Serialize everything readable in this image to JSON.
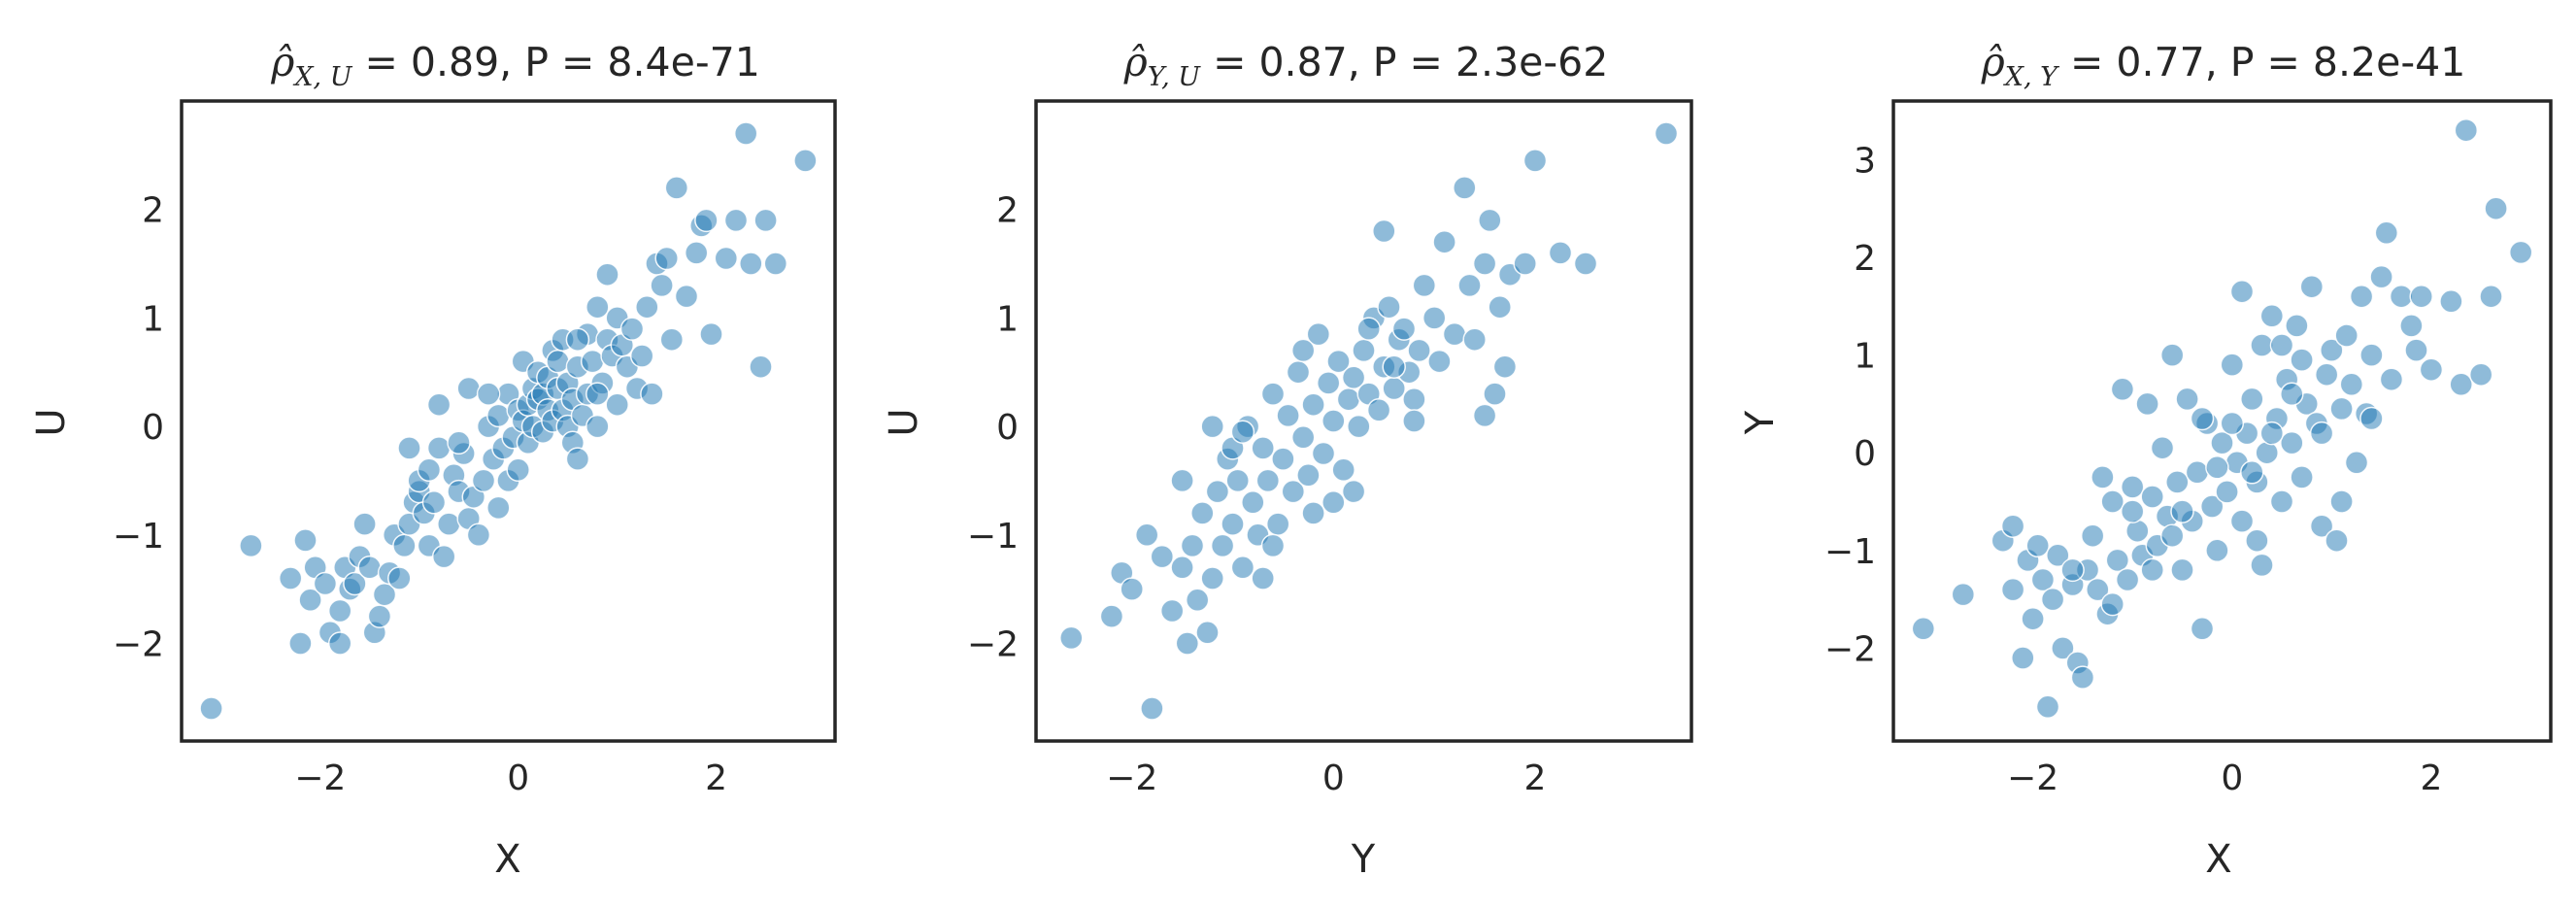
{
  "chart_data": [
    {
      "type": "scatter",
      "title": {
        "symbol": "ρ̂",
        "subscript": "X, U",
        "text": " = 0.89, P = 8.4e-71"
      },
      "xlabel": "X",
      "ylabel": "U",
      "xlim": [
        -3.4,
        3.2
      ],
      "ylim": [
        -2.9,
        3.0
      ],
      "xticks": [
        -2,
        0,
        2
      ],
      "yticks": [
        -2,
        -1,
        0,
        1,
        2
      ],
      "color": "#1f77b4",
      "grid": false,
      "points": [
        [
          -3.1,
          -2.6
        ],
        [
          -2.7,
          -1.1
        ],
        [
          -2.3,
          -1.4
        ],
        [
          -2.2,
          -2.0
        ],
        [
          -2.1,
          -1.6
        ],
        [
          -2.15,
          -1.05
        ],
        [
          -2.05,
          -1.3
        ],
        [
          -1.95,
          -1.45
        ],
        [
          -1.9,
          -1.9
        ],
        [
          -1.8,
          -2.0
        ],
        [
          -1.8,
          -1.7
        ],
        [
          -1.75,
          -1.3
        ],
        [
          -1.7,
          -1.5
        ],
        [
          -1.65,
          -1.45
        ],
        [
          -1.6,
          -1.2
        ],
        [
          -1.55,
          -0.9
        ],
        [
          -1.5,
          -1.3
        ],
        [
          -1.45,
          -1.9
        ],
        [
          -1.4,
          -1.75
        ],
        [
          -1.35,
          -1.55
        ],
        [
          -1.3,
          -1.35
        ],
        [
          -1.25,
          -1.0
        ],
        [
          -1.2,
          -1.4
        ],
        [
          -1.15,
          -1.1
        ],
        [
          -1.1,
          -0.9
        ],
        [
          -1.05,
          -0.7
        ],
        [
          -1.0,
          -0.6
        ],
        [
          -0.95,
          -0.8
        ],
        [
          -0.9,
          -1.1
        ],
        [
          -1.1,
          -0.2
        ],
        [
          -1.0,
          -0.5
        ],
        [
          -0.9,
          -0.4
        ],
        [
          -0.85,
          -0.7
        ],
        [
          -0.8,
          -0.2
        ],
        [
          -0.75,
          -1.2
        ],
        [
          -0.7,
          -0.9
        ],
        [
          -0.65,
          -0.45
        ],
        [
          -0.6,
          -0.6
        ],
        [
          -0.55,
          -0.25
        ],
        [
          -0.5,
          -0.85
        ],
        [
          -0.45,
          -0.65
        ],
        [
          -0.4,
          -1.0
        ],
        [
          -0.35,
          -0.5
        ],
        [
          -0.3,
          0.0
        ],
        [
          -0.25,
          -0.3
        ],
        [
          -0.2,
          -0.75
        ],
        [
          -0.2,
          0.1
        ],
        [
          -0.15,
          -0.2
        ],
        [
          -0.1,
          0.3
        ],
        [
          -0.1,
          -0.5
        ],
        [
          -0.05,
          -0.1
        ],
        [
          0.0,
          0.15
        ],
        [
          0.0,
          -0.4
        ],
        [
          0.05,
          0.05
        ],
        [
          0.05,
          0.6
        ],
        [
          0.1,
          0.2
        ],
        [
          0.1,
          -0.15
        ],
        [
          0.15,
          0.35
        ],
        [
          0.15,
          0.0
        ],
        [
          0.2,
          0.25
        ],
        [
          0.2,
          0.5
        ],
        [
          0.25,
          -0.05
        ],
        [
          0.25,
          0.3
        ],
        [
          0.3,
          0.45
        ],
        [
          0.3,
          0.15
        ],
        [
          0.35,
          0.7
        ],
        [
          0.35,
          0.05
        ],
        [
          0.4,
          0.35
        ],
        [
          0.4,
          0.6
        ],
        [
          0.45,
          0.15
        ],
        [
          0.45,
          0.8
        ],
        [
          0.5,
          0.0
        ],
        [
          0.5,
          0.4
        ],
        [
          0.55,
          -0.15
        ],
        [
          0.55,
          0.25
        ],
        [
          0.6,
          0.55
        ],
        [
          0.6,
          -0.3
        ],
        [
          0.65,
          0.1
        ],
        [
          0.7,
          0.85
        ],
        [
          0.7,
          0.3
        ],
        [
          0.75,
          0.6
        ],
        [
          0.8,
          1.1
        ],
        [
          0.8,
          0.0
        ],
        [
          0.85,
          0.4
        ],
        [
          0.9,
          0.8
        ],
        [
          0.9,
          1.4
        ],
        [
          0.95,
          0.65
        ],
        [
          1.0,
          0.2
        ],
        [
          1.0,
          1.0
        ],
        [
          1.05,
          0.75
        ],
        [
          1.1,
          0.55
        ],
        [
          1.15,
          0.9
        ],
        [
          1.2,
          0.35
        ],
        [
          1.25,
          0.65
        ],
        [
          1.3,
          1.1
        ],
        [
          1.35,
          0.3
        ],
        [
          1.4,
          1.5
        ],
        [
          1.45,
          1.3
        ],
        [
          1.5,
          1.55
        ],
        [
          1.55,
          0.8
        ],
        [
          1.6,
          2.2
        ],
        [
          1.7,
          1.2
        ],
        [
          1.8,
          1.6
        ],
        [
          1.85,
          1.85
        ],
        [
          1.9,
          1.9
        ],
        [
          1.95,
          0.85
        ],
        [
          2.1,
          1.55
        ],
        [
          2.2,
          1.9
        ],
        [
          2.3,
          2.7
        ],
        [
          2.35,
          1.5
        ],
        [
          2.45,
          0.55
        ],
        [
          2.5,
          1.9
        ],
        [
          2.6,
          1.5
        ],
        [
          2.9,
          2.45
        ],
        [
          -0.5,
          0.35
        ],
        [
          -0.8,
          0.2
        ],
        [
          0.6,
          0.8
        ],
        [
          0.8,
          0.3
        ],
        [
          -0.3,
          0.3
        ],
        [
          -0.6,
          -0.15
        ]
      ]
    },
    {
      "type": "scatter",
      "title": {
        "symbol": "ρ̂",
        "subscript": "Y, U",
        "text": " = 0.87, P = 2.3e-62"
      },
      "xlabel": "Y",
      "ylabel": "U",
      "xlim": [
        -2.95,
        3.55
      ],
      "ylim": [
        -2.9,
        3.0
      ],
      "xticks": [
        -2,
        0,
        2
      ],
      "yticks": [
        -2,
        -1,
        0,
        1,
        2
      ],
      "color": "#1f77b4",
      "grid": false,
      "points": [
        [
          -2.6,
          -1.95
        ],
        [
          -2.2,
          -1.75
        ],
        [
          -2.1,
          -1.35
        ],
        [
          -2.0,
          -1.5
        ],
        [
          -1.85,
          -1.0
        ],
        [
          -1.8,
          -2.6
        ],
        [
          -1.7,
          -1.2
        ],
        [
          -1.6,
          -1.7
        ],
        [
          -1.5,
          -1.3
        ],
        [
          -1.45,
          -2.0
        ],
        [
          -1.4,
          -1.1
        ],
        [
          -1.35,
          -1.6
        ],
        [
          -1.3,
          -0.8
        ],
        [
          -1.25,
          -1.9
        ],
        [
          -1.2,
          -1.4
        ],
        [
          -1.15,
          -0.6
        ],
        [
          -1.1,
          -1.1
        ],
        [
          -1.05,
          -0.3
        ],
        [
          -1.0,
          -0.9
        ],
        [
          -0.95,
          -0.5
        ],
        [
          -0.9,
          -1.3
        ],
        [
          -0.85,
          0.0
        ],
        [
          -0.8,
          -0.7
        ],
        [
          -0.75,
          -1.0
        ],
        [
          -0.7,
          -0.2
        ],
        [
          -0.65,
          -0.5
        ],
        [
          -0.6,
          0.3
        ],
        [
          -0.55,
          -0.9
        ],
        [
          -0.5,
          -0.3
        ],
        [
          -0.45,
          0.1
        ],
        [
          -0.4,
          -0.6
        ],
        [
          -0.35,
          0.5
        ],
        [
          -0.3,
          -0.1
        ],
        [
          -0.25,
          -0.45
        ],
        [
          -0.2,
          0.2
        ],
        [
          -0.15,
          0.85
        ],
        [
          -0.1,
          -0.25
        ],
        [
          -0.05,
          0.4
        ],
        [
          0.0,
          0.05
        ],
        [
          0.05,
          0.6
        ],
        [
          0.1,
          -0.4
        ],
        [
          0.15,
          0.25
        ],
        [
          0.2,
          0.45
        ],
        [
          0.25,
          0.0
        ],
        [
          0.3,
          0.7
        ],
        [
          0.35,
          0.3
        ],
        [
          0.4,
          1.0
        ],
        [
          0.45,
          0.15
        ],
        [
          0.5,
          0.55
        ],
        [
          0.55,
          1.1
        ],
        [
          0.6,
          0.35
        ],
        [
          0.65,
          0.8
        ],
        [
          0.7,
          0.9
        ],
        [
          0.75,
          0.5
        ],
        [
          0.8,
          0.25
        ],
        [
          0.85,
          0.7
        ],
        [
          0.9,
          1.3
        ],
        [
          1.0,
          1.0
        ],
        [
          1.05,
          0.6
        ],
        [
          1.1,
          1.7
        ],
        [
          1.2,
          0.85
        ],
        [
          1.3,
          2.2
        ],
        [
          1.35,
          1.3
        ],
        [
          1.4,
          0.8
        ],
        [
          1.5,
          1.5
        ],
        [
          1.55,
          1.9
        ],
        [
          1.6,
          0.3
        ],
        [
          1.65,
          1.1
        ],
        [
          1.7,
          0.55
        ],
        [
          1.75,
          1.4
        ],
        [
          1.9,
          1.5
        ],
        [
          2.0,
          2.45
        ],
        [
          2.25,
          1.6
        ],
        [
          2.5,
          1.5
        ],
        [
          3.3,
          2.7
        ],
        [
          -1.2,
          0.0
        ],
        [
          -0.7,
          -1.4
        ],
        [
          0.0,
          -0.7
        ],
        [
          0.5,
          1.8
        ],
        [
          -0.3,
          0.7
        ],
        [
          -1.5,
          -0.5
        ],
        [
          -1.0,
          -0.2
        ],
        [
          0.2,
          -0.6
        ],
        [
          0.8,
          0.05
        ],
        [
          1.5,
          0.1
        ],
        [
          -0.6,
          -1.1
        ],
        [
          0.35,
          0.9
        ],
        [
          -0.2,
          -0.8
        ],
        [
          0.6,
          0.55
        ],
        [
          -0.9,
          -0.05
        ]
      ]
    },
    {
      "type": "scatter",
      "title": {
        "symbol": "ρ̂",
        "subscript": "X, Y",
        "text": " = 0.77, P = 8.2e-41"
      },
      "xlabel": "X",
      "ylabel": "Y",
      "xlim": [
        -3.4,
        3.2
      ],
      "ylim": [
        -2.95,
        3.6
      ],
      "xticks": [
        -2,
        0,
        2
      ],
      "yticks": [
        -2,
        -1,
        0,
        1,
        2,
        3
      ],
      "color": "#1f77b4",
      "grid": false,
      "points": [
        [
          -3.1,
          -1.8
        ],
        [
          -2.7,
          -1.45
        ],
        [
          -2.3,
          -0.9
        ],
        [
          -2.2,
          -1.4
        ],
        [
          -2.2,
          -0.75
        ],
        [
          -2.1,
          -2.1
        ],
        [
          -2.05,
          -1.1
        ],
        [
          -2.0,
          -1.7
        ],
        [
          -1.95,
          -0.95
        ],
        [
          -1.9,
          -1.3
        ],
        [
          -1.85,
          -2.6
        ],
        [
          -1.8,
          -1.5
        ],
        [
          -1.75,
          -1.05
        ],
        [
          -1.7,
          -2.0
        ],
        [
          -1.6,
          -1.35
        ],
        [
          -1.55,
          -2.15
        ],
        [
          -1.5,
          -2.3
        ],
        [
          -1.45,
          -1.2
        ],
        [
          -1.4,
          -0.85
        ],
        [
          -1.35,
          -1.4
        ],
        [
          -1.3,
          -0.25
        ],
        [
          -1.25,
          -1.65
        ],
        [
          -1.2,
          -0.5
        ],
        [
          -1.15,
          -1.1
        ],
        [
          -1.1,
          0.65
        ],
        [
          -1.05,
          -1.3
        ],
        [
          -1.0,
          -0.35
        ],
        [
          -0.95,
          -0.8
        ],
        [
          -0.9,
          -1.05
        ],
        [
          -0.85,
          0.5
        ],
        [
          -0.8,
          -0.45
        ],
        [
          -0.75,
          -0.95
        ],
        [
          -0.7,
          0.05
        ],
        [
          -0.65,
          -0.65
        ],
        [
          -0.6,
          1.0
        ],
        [
          -0.55,
          -0.3
        ],
        [
          -0.5,
          -1.2
        ],
        [
          -0.45,
          0.55
        ],
        [
          -0.4,
          -0.7
        ],
        [
          -0.35,
          -0.2
        ],
        [
          -0.3,
          -1.8
        ],
        [
          -0.25,
          0.3
        ],
        [
          -0.2,
          -0.55
        ],
        [
          -0.15,
          -1.0
        ],
        [
          -0.1,
          0.1
        ],
        [
          -0.05,
          -0.4
        ],
        [
          0.0,
          0.9
        ],
        [
          0.05,
          -0.1
        ],
        [
          0.1,
          1.65
        ],
        [
          0.1,
          -0.7
        ],
        [
          0.15,
          0.2
        ],
        [
          0.2,
          0.55
        ],
        [
          0.25,
          -0.3
        ],
        [
          0.3,
          1.1
        ],
        [
          0.3,
          -1.15
        ],
        [
          0.35,
          0.0
        ],
        [
          0.4,
          1.4
        ],
        [
          0.45,
          0.35
        ],
        [
          0.5,
          -0.5
        ],
        [
          0.55,
          0.75
        ],
        [
          0.6,
          0.1
        ],
        [
          0.65,
          1.3
        ],
        [
          0.7,
          -0.25
        ],
        [
          0.75,
          0.5
        ],
        [
          0.8,
          1.7
        ],
        [
          0.85,
          0.3
        ],
        [
          0.9,
          -0.75
        ],
        [
          0.95,
          0.8
        ],
        [
          1.0,
          1.05
        ],
        [
          1.05,
          -0.9
        ],
        [
          1.1,
          0.45
        ],
        [
          1.15,
          1.2
        ],
        [
          1.2,
          0.7
        ],
        [
          1.25,
          -0.1
        ],
        [
          1.3,
          1.6
        ],
        [
          1.35,
          0.4
        ],
        [
          1.4,
          1.0
        ],
        [
          1.5,
          1.8
        ],
        [
          1.55,
          2.25
        ],
        [
          1.6,
          0.75
        ],
        [
          1.7,
          1.6
        ],
        [
          1.8,
          1.3
        ],
        [
          1.85,
          1.05
        ],
        [
          1.9,
          1.6
        ],
        [
          2.0,
          0.85
        ],
        [
          2.2,
          1.55
        ],
        [
          2.3,
          0.7
        ],
        [
          2.35,
          3.3
        ],
        [
          2.5,
          0.8
        ],
        [
          2.6,
          1.6
        ],
        [
          2.65,
          2.5
        ],
        [
          2.9,
          2.05
        ],
        [
          -0.5,
          -0.6
        ],
        [
          0.2,
          -0.2
        ],
        [
          -0.8,
          -1.2
        ],
        [
          0.6,
          0.6
        ],
        [
          -1.2,
          -1.55
        ],
        [
          0.0,
          0.3
        ],
        [
          0.9,
          0.2
        ],
        [
          -0.3,
          0.35
        ],
        [
          0.4,
          0.2
        ],
        [
          -0.6,
          -0.85
        ],
        [
          1.1,
          -0.5
        ],
        [
          0.7,
          0.95
        ],
        [
          -1.6,
          -1.2
        ],
        [
          1.4,
          0.35
        ],
        [
          0.25,
          -0.9
        ],
        [
          -0.15,
          -0.15
        ],
        [
          0.5,
          1.1
        ],
        [
          -1.0,
          -0.6
        ]
      ]
    }
  ]
}
